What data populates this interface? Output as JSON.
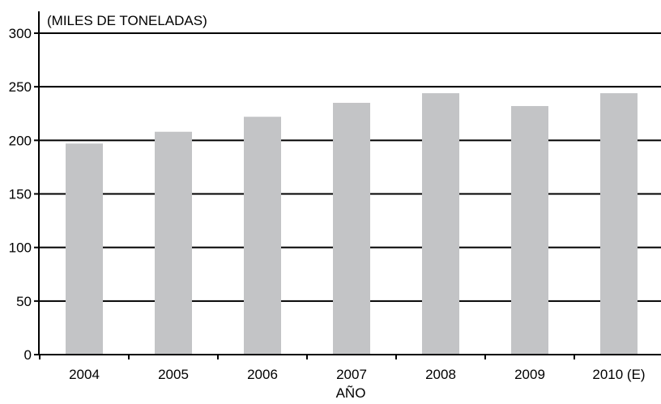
{
  "chart_data": {
    "type": "bar",
    "title": "",
    "ylabel": "(MILES DE TONELADAS)",
    "xlabel": "AÑO",
    "categories": [
      "2004",
      "2005",
      "2006",
      "2007",
      "2008",
      "2009",
      "2010 (E)"
    ],
    "values": [
      197,
      208,
      222,
      235,
      244,
      232,
      244
    ],
    "ylim": [
      0,
      300
    ],
    "yticks": [
      0,
      50,
      100,
      150,
      200,
      250,
      300
    ],
    "grid": true,
    "bar_color": "#c3c4c6",
    "grid_color": "#000000"
  }
}
